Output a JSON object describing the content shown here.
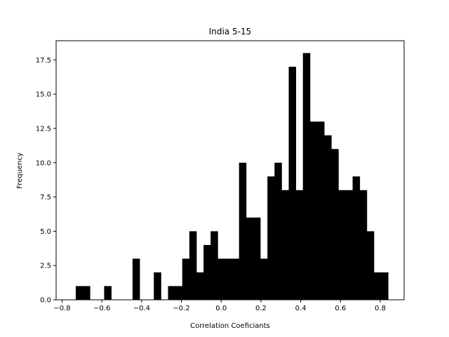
{
  "chart_data": {
    "type": "bar",
    "title": "India 5-15",
    "xlabel": "Correlation Coeficiants",
    "ylabel": "Frequency",
    "xlim": [
      -0.83,
      0.92
    ],
    "ylim": [
      0,
      18.9
    ],
    "x_ticks": [
      "−0.8",
      "−0.6",
      "−0.4",
      "−0.2",
      "0.0",
      "0.2",
      "0.4",
      "0.6",
      "0.8"
    ],
    "y_ticks": [
      "0.0",
      "2.5",
      "5.0",
      "7.5",
      "10.0",
      "12.5",
      "15.0",
      "17.5"
    ],
    "bin_width": 0.0357,
    "bin_starts": [
      -0.7313,
      -0.6956,
      -0.6599,
      -0.6242,
      -0.5885,
      -0.5528,
      -0.5171,
      -0.4814,
      -0.4457,
      -0.41,
      -0.3743,
      -0.3386,
      -0.3029,
      -0.2672,
      -0.2315,
      -0.1958,
      -0.1601,
      -0.1244,
      -0.0887,
      -0.053,
      -0.0173,
      0.0184,
      0.0541,
      0.0898,
      0.1255,
      0.1612,
      0.1969,
      0.2326,
      0.2683,
      0.304,
      0.3397,
      0.3754,
      0.4111,
      0.4468,
      0.4825,
      0.5182,
      0.5539,
      0.5896,
      0.6253,
      0.661,
      0.6967,
      0.7324,
      0.7681,
      0.8038
    ],
    "counts": [
      1,
      1,
      0,
      0,
      1,
      0,
      0,
      0,
      3,
      0,
      0,
      2,
      0,
      1,
      1,
      3,
      5,
      2,
      4,
      5,
      3,
      3,
      3,
      10,
      6,
      6,
      3,
      9,
      10,
      8,
      17,
      8,
      18,
      13,
      13,
      12,
      11,
      8,
      8,
      9,
      8,
      5,
      2,
      2
    ],
    "bar_color": "#000000"
  }
}
